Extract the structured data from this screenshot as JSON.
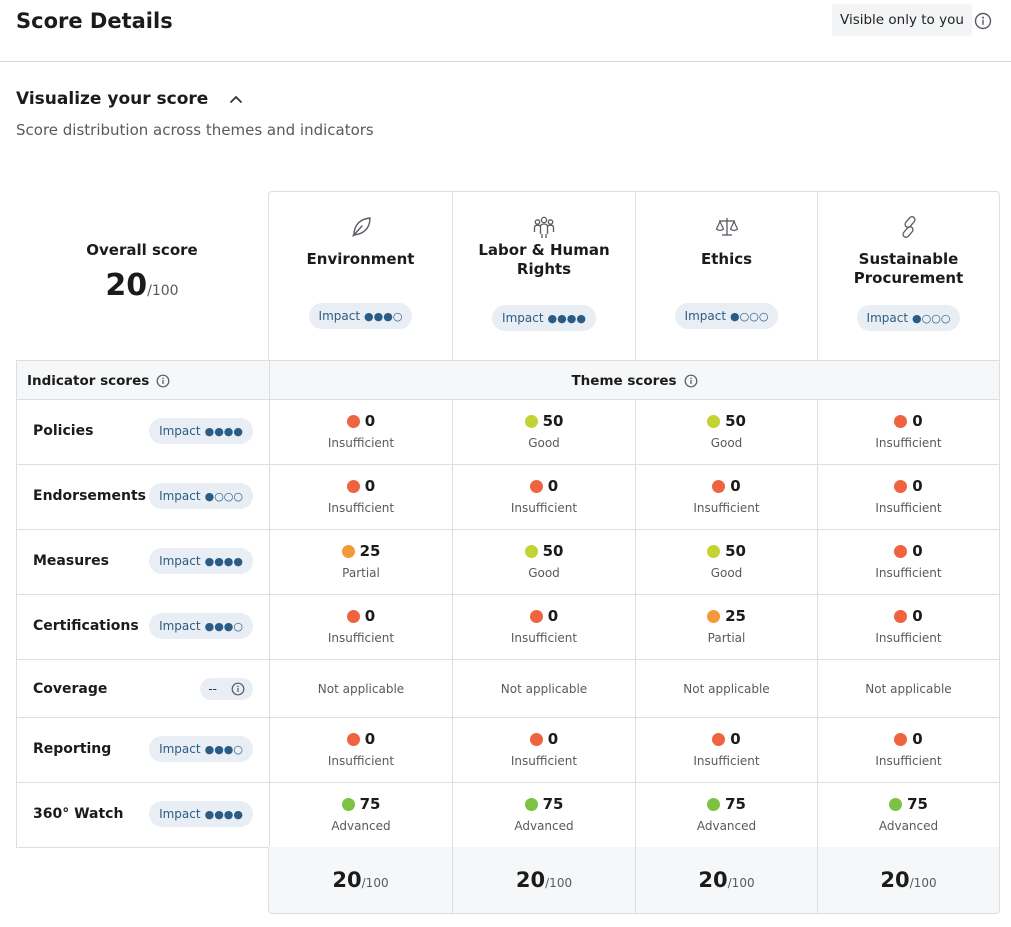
{
  "header": {
    "title": "Score Details",
    "visibility": "Visible only to you"
  },
  "section": {
    "title": "Visualize your score",
    "subtitle": "Score distribution across themes and indicators"
  },
  "overall": {
    "label": "Overall score",
    "value": "20",
    "max": "/100"
  },
  "themes": [
    {
      "name": "Environment",
      "icon": "leaf-icon",
      "impact_label": "Impact",
      "impact_level": 3
    },
    {
      "name": "Labor & Human Rights",
      "icon": "people-icon",
      "impact_label": "Impact",
      "impact_level": 4
    },
    {
      "name": "Ethics",
      "icon": "scales-icon",
      "impact_label": "Impact",
      "impact_level": 1
    },
    {
      "name": "Sustainable Procurement",
      "icon": "link-icon",
      "impact_label": "Impact",
      "impact_level": 1
    }
  ],
  "table": {
    "indicator_header": "Indicator scores",
    "theme_header": "Theme scores",
    "not_applicable": "Not applicable",
    "coverage_value": "--"
  },
  "status_colors": {
    "Insufficient": "#ee6340",
    "Partial": "#f2993a",
    "Good": "#c4d334",
    "Advanced": "#7cc243"
  },
  "rows": [
    {
      "label": "Policies",
      "impact_label": "Impact",
      "impact_level": 4,
      "cells": [
        {
          "score": "0",
          "status": "Insufficient"
        },
        {
          "score": "50",
          "status": "Good"
        },
        {
          "score": "50",
          "status": "Good"
        },
        {
          "score": "0",
          "status": "Insufficient"
        }
      ]
    },
    {
      "label": "Endorsements",
      "impact_label": "Impact",
      "impact_level": 1,
      "cells": [
        {
          "score": "0",
          "status": "Insufficient"
        },
        {
          "score": "0",
          "status": "Insufficient"
        },
        {
          "score": "0",
          "status": "Insufficient"
        },
        {
          "score": "0",
          "status": "Insufficient"
        }
      ]
    },
    {
      "label": "Measures",
      "impact_label": "Impact",
      "impact_level": 4,
      "cells": [
        {
          "score": "25",
          "status": "Partial"
        },
        {
          "score": "50",
          "status": "Good"
        },
        {
          "score": "50",
          "status": "Good"
        },
        {
          "score": "0",
          "status": "Insufficient"
        }
      ]
    },
    {
      "label": "Certifications",
      "impact_label": "Impact",
      "impact_level": 3,
      "cells": [
        {
          "score": "0",
          "status": "Insufficient"
        },
        {
          "score": "0",
          "status": "Insufficient"
        },
        {
          "score": "25",
          "status": "Partial"
        },
        {
          "score": "0",
          "status": "Insufficient"
        }
      ]
    },
    {
      "label": "Coverage",
      "coverage": true,
      "cells": [
        {
          "na": true
        },
        {
          "na": true
        },
        {
          "na": true
        },
        {
          "na": true
        }
      ]
    },
    {
      "label": "Reporting",
      "impact_label": "Impact",
      "impact_level": 3,
      "cells": [
        {
          "score": "0",
          "status": "Insufficient"
        },
        {
          "score": "0",
          "status": "Insufficient"
        },
        {
          "score": "0",
          "status": "Insufficient"
        },
        {
          "score": "0",
          "status": "Insufficient"
        }
      ]
    },
    {
      "label": "360° Watch",
      "impact_label": "Impact",
      "impact_level": 4,
      "cells": [
        {
          "score": "75",
          "status": "Advanced"
        },
        {
          "score": "75",
          "status": "Advanced"
        },
        {
          "score": "75",
          "status": "Advanced"
        },
        {
          "score": "75",
          "status": "Advanced"
        }
      ]
    }
  ],
  "totals": [
    {
      "value": "20",
      "max": "/100"
    },
    {
      "value": "20",
      "max": "/100"
    },
    {
      "value": "20",
      "max": "/100"
    },
    {
      "value": "20",
      "max": "/100"
    }
  ]
}
